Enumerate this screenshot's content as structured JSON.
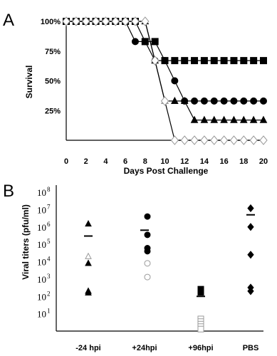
{
  "colors": {
    "filled": "#000000",
    "open_stroke": "#9a9a9a",
    "open_fill": "#ffffff",
    "axis": "#000000"
  },
  "chart_data": [
    {
      "panel": "A",
      "type": "line",
      "xlabel": "Days Post Challenge",
      "ylabel": "Survival",
      "xlim": [
        0,
        20
      ],
      "ylim": [
        0,
        100
      ],
      "x_ticks": [
        "0",
        "2",
        "4",
        "6",
        "8",
        "10",
        "12",
        "14",
        "16",
        "18",
        "20"
      ],
      "y_ticks": [
        "25%",
        "50%",
        "75%",
        "100%"
      ],
      "grid": false,
      "series": [
        {
          "marker": "square",
          "fill": "filled",
          "x": [
            0,
            1,
            2,
            3,
            4,
            5,
            6,
            7,
            8,
            9,
            10,
            11,
            12,
            13,
            14,
            15,
            16,
            17,
            18,
            19,
            20
          ],
          "y": [
            100,
            100,
            100,
            100,
            100,
            100,
            100,
            100,
            83,
            83,
            67,
            67,
            67,
            67,
            67,
            67,
            67,
            67,
            67,
            67,
            67
          ]
        },
        {
          "marker": "circle",
          "fill": "filled",
          "x": [
            0,
            1,
            2,
            3,
            4,
            5,
            6,
            7,
            8,
            9,
            10,
            11,
            12,
            13,
            14,
            15,
            16,
            17,
            18,
            19,
            20
          ],
          "y": [
            100,
            100,
            100,
            100,
            100,
            100,
            100,
            83,
            83,
            67,
            67,
            50,
            33,
            33,
            33,
            33,
            33,
            33,
            33,
            33,
            33
          ]
        },
        {
          "marker": "triangle",
          "fill": "filled",
          "x": [
            0,
            1,
            2,
            3,
            4,
            5,
            6,
            7,
            8,
            9,
            10,
            11,
            12,
            13,
            14,
            15,
            16,
            17,
            18,
            19,
            20
          ],
          "y": [
            100,
            100,
            100,
            100,
            100,
            100,
            100,
            100,
            100,
            67,
            33,
            33,
            33,
            17,
            17,
            17,
            17,
            17,
            17,
            17,
            17
          ]
        },
        {
          "marker": "triangle",
          "fill": "open",
          "x": [
            10
          ],
          "y": [
            33
          ]
        },
        {
          "marker": "diamond",
          "fill": "open",
          "x": [
            0,
            1,
            2,
            3,
            4,
            5,
            6,
            7,
            8,
            9,
            10,
            11,
            12,
            13,
            14,
            15,
            16,
            17,
            18,
            19,
            20
          ],
          "y": [
            100,
            100,
            100,
            100,
            100,
            100,
            100,
            100,
            100,
            67,
            33,
            0,
            0,
            0,
            0,
            0,
            0,
            0,
            0,
            0,
            0
          ]
        }
      ]
    },
    {
      "panel": "B",
      "type": "scatter",
      "ylabel": "Viral titers (pfu/ml)",
      "yscale": "log",
      "ylim": [
        1,
        100000000
      ],
      "y_ticks": [
        "10",
        "10",
        "10",
        "10",
        "10",
        "10",
        "10",
        "10"
      ],
      "y_tick_exponents": [
        "1",
        "2",
        "3",
        "4",
        "5",
        "6",
        "7",
        "8"
      ],
      "categories": [
        "-24 hpi",
        "+24hpi",
        "+96hpi",
        "PBS"
      ],
      "groups": [
        {
          "category": "-24 hpi",
          "mean": 300000,
          "points": [
            {
              "marker": "triangle",
              "fill": "filled",
              "y": 1500000
            },
            {
              "marker": "triangle",
              "fill": "filled",
              "y": 8000
            },
            {
              "marker": "triangle",
              "fill": "filled",
              "y": 200
            },
            {
              "marker": "triangle",
              "fill": "filled",
              "y": 160
            },
            {
              "marker": "triangle",
              "fill": "open",
              "y": 20000
            }
          ]
        },
        {
          "category": "+24hpi",
          "mean": 650000,
          "points": [
            {
              "marker": "circle",
              "fill": "filled",
              "y": 4000000
            },
            {
              "marker": "circle",
              "fill": "filled",
              "y": 350000
            },
            {
              "marker": "circle",
              "fill": "filled",
              "y": 60000
            },
            {
              "marker": "circle",
              "fill": "filled",
              "y": 40000
            },
            {
              "marker": "circle",
              "fill": "open",
              "y": 8000
            },
            {
              "marker": "circle",
              "fill": "open",
              "y": 1300
            }
          ]
        },
        {
          "category": "+96hpi",
          "mean": 100,
          "points": [
            {
              "marker": "square",
              "fill": "filled",
              "y": 260
            },
            {
              "marker": "square",
              "fill": "filled",
              "y": 170
            },
            {
              "marker": "square",
              "fill": "open",
              "y": 5
            },
            {
              "marker": "square",
              "fill": "open",
              "y": 3.5
            },
            {
              "marker": "square",
              "fill": "open",
              "y": 2.5
            },
            {
              "marker": "square",
              "fill": "open",
              "y": 1.8
            },
            {
              "marker": "square",
              "fill": "open",
              "y": 1.3
            }
          ]
        },
        {
          "category": "PBS",
          "mean": 5000000,
          "points": [
            {
              "marker": "diamond",
              "fill": "filled",
              "y": 12000000
            },
            {
              "marker": "diamond",
              "fill": "filled",
              "y": 1000000
            },
            {
              "marker": "diamond",
              "fill": "filled",
              "y": 25000
            },
            {
              "marker": "diamond",
              "fill": "filled",
              "y": 320
            },
            {
              "marker": "diamond",
              "fill": "filled",
              "y": 200
            }
          ]
        }
      ]
    }
  ]
}
